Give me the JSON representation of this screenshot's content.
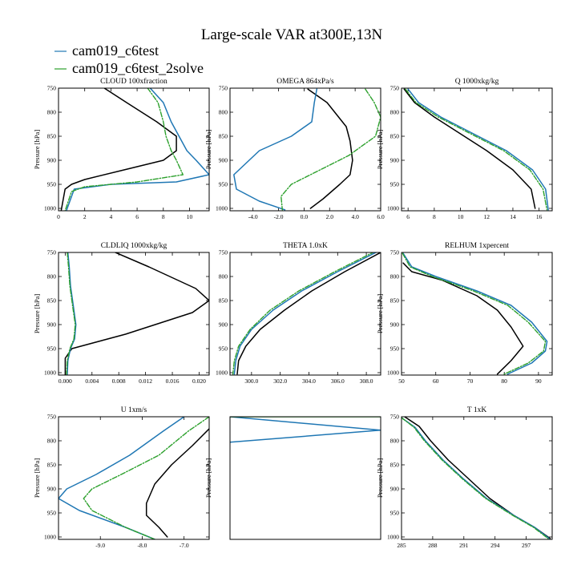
{
  "figure": {
    "title": "Large-scale VAR at300E,13N",
    "legend": [
      {
        "name": "cam019_c6test",
        "color": "#1f77b4"
      },
      {
        "name": "cam019_c6test_2solve",
        "color": "#2ca02c"
      }
    ],
    "obs_color": "#000000"
  },
  "chart_data": [
    {
      "type": "line",
      "title": "CLOUD  100xfraction",
      "ylabel": "Pressure [hPa]",
      "xlim": [
        0,
        11.5
      ],
      "ylim": [
        1005,
        750
      ],
      "xticks": [
        {
          "v": 0,
          "l": "0"
        },
        {
          "v": 2,
          "l": "2"
        },
        {
          "v": 4,
          "l": "4"
        },
        {
          "v": 6,
          "l": "6"
        },
        {
          "v": 8,
          "l": "8"
        },
        {
          "v": 10,
          "l": "10"
        }
      ],
      "yticks": [
        {
          "v": 750,
          "l": "750"
        },
        {
          "v": 800,
          "l": "800"
        },
        {
          "v": 850,
          "l": "850"
        },
        {
          "v": 900,
          "l": "900"
        },
        {
          "v": 950,
          "l": "950"
        },
        {
          "v": 1000,
          "l": "1000"
        }
      ],
      "series": [
        {
          "name": "obs",
          "style": "solid",
          "x": [
            3.5,
            5.2,
            7.5,
            9.0,
            9.0,
            8.0,
            5.0,
            2.0,
            1.0,
            0.5,
            0.2
          ],
          "y": [
            750,
            780,
            820,
            850,
            880,
            900,
            920,
            940,
            950,
            960,
            1005
          ]
        },
        {
          "name": "cam019_c6test",
          "style": "solid",
          "x": [
            7.0,
            8.0,
            8.6,
            9.2,
            9.8,
            10.5,
            11.5,
            9.0,
            4.0,
            1.2,
            0.6
          ],
          "y": [
            750,
            780,
            820,
            850,
            880,
            900,
            930,
            945,
            950,
            960,
            1005
          ]
        },
        {
          "name": "cam019_c6test_2solve",
          "style": "dashdot",
          "x": [
            6.8,
            7.6,
            8.0,
            8.2,
            8.6,
            9.0,
            9.5,
            6.0,
            2.0,
            1.0,
            0.5
          ],
          "y": [
            750,
            780,
            820,
            850,
            880,
            900,
            930,
            945,
            955,
            965,
            1005
          ]
        }
      ]
    },
    {
      "type": "line",
      "title": "OMEGA  864xPa/s",
      "ylabel": "Pressure [hPa]",
      "xlim": [
        -5.8,
        6.0
      ],
      "ylim": [
        1005,
        750
      ],
      "xticks": [
        {
          "v": -4,
          "l": "-4.0"
        },
        {
          "v": -2,
          "l": "-2.0"
        },
        {
          "v": 0,
          "l": "0.0"
        },
        {
          "v": 2,
          "l": "2.0"
        },
        {
          "v": 4,
          "l": "4.0"
        },
        {
          "v": 6,
          "l": "6.0"
        }
      ],
      "yticks": [
        {
          "v": 750,
          "l": "750"
        },
        {
          "v": 800,
          "l": "800"
        },
        {
          "v": 850,
          "l": "850"
        },
        {
          "v": 900,
          "l": "900"
        },
        {
          "v": 950,
          "l": "950"
        },
        {
          "v": 1000,
          "l": "1000"
        }
      ],
      "series": [
        {
          "name": "obs",
          "style": "solid",
          "x": [
            0.3,
            1.8,
            3.3,
            3.6,
            3.8,
            3.6,
            2.8,
            1.5,
            0.5
          ],
          "y": [
            752,
            780,
            830,
            860,
            900,
            930,
            950,
            980,
            1000
          ]
        },
        {
          "name": "cam019_c6test",
          "style": "solid",
          "x": [
            1.0,
            0.8,
            0.6,
            -1.0,
            -3.5,
            -5.5,
            -5.3,
            -3.5,
            -1.5
          ],
          "y": [
            752,
            780,
            820,
            850,
            880,
            930,
            960,
            985,
            1003
          ]
        },
        {
          "name": "cam019_c6test_2solve",
          "style": "dashdot",
          "x": [
            4.8,
            5.5,
            6.0,
            5.6,
            3.5,
            0.5,
            -1.0,
            -1.8,
            -1.7
          ],
          "y": [
            752,
            780,
            810,
            850,
            890,
            930,
            950,
            975,
            1003
          ]
        }
      ]
    },
    {
      "type": "line",
      "title": "Q  1000xkg/kg",
      "ylabel": "Pressure [hPa]",
      "xlim": [
        5.5,
        17
      ],
      "ylim": [
        1005,
        750
      ],
      "xticks": [
        {
          "v": 6,
          "l": "6"
        },
        {
          "v": 8,
          "l": "8"
        },
        {
          "v": 10,
          "l": "10"
        },
        {
          "v": 12,
          "l": "12"
        },
        {
          "v": 14,
          "l": "14"
        },
        {
          "v": 16,
          "l": "16"
        }
      ],
      "yticks": [
        {
          "v": 750,
          "l": "750"
        },
        {
          "v": 800,
          "l": "800"
        },
        {
          "v": 850,
          "l": "850"
        },
        {
          "v": 900,
          "l": "900"
        },
        {
          "v": 950,
          "l": "950"
        },
        {
          "v": 1000,
          "l": "1000"
        }
      ],
      "series": [
        {
          "name": "obs",
          "style": "solid",
          "x": [
            5.7,
            6.5,
            8.0,
            10.0,
            12.0,
            14.0,
            15.4,
            15.7
          ],
          "y": [
            752,
            780,
            810,
            845,
            880,
            920,
            960,
            1000
          ]
        },
        {
          "name": "cam019_c6test",
          "style": "solid",
          "x": [
            6.0,
            6.8,
            8.5,
            11.0,
            13.5,
            15.5,
            16.5,
            16.7
          ],
          "y": [
            752,
            780,
            810,
            845,
            880,
            920,
            960,
            1003
          ]
        },
        {
          "name": "cam019_c6test_2solve",
          "style": "dashdot",
          "x": [
            5.8,
            6.6,
            8.3,
            10.8,
            13.3,
            15.3,
            16.3,
            16.6
          ],
          "y": [
            752,
            780,
            810,
            845,
            880,
            920,
            960,
            1003
          ]
        }
      ]
    },
    {
      "type": "line",
      "title": "CLDLIQ  1000xkg/kg",
      "ylabel": "Pressure [hPa]",
      "xlim": [
        -0.001,
        0.0215
      ],
      "ylim": [
        1005,
        750
      ],
      "xticks": [
        {
          "v": 0,
          "l": "0.000"
        },
        {
          "v": 0.004,
          "l": "0.004"
        },
        {
          "v": 0.008,
          "l": "0.008"
        },
        {
          "v": 0.012,
          "l": "0.012"
        },
        {
          "v": 0.016,
          "l": "0.016"
        },
        {
          "v": 0.02,
          "l": "0.020"
        }
      ],
      "yticks": [
        {
          "v": 750,
          "l": "750"
        },
        {
          "v": 800,
          "l": "800"
        },
        {
          "v": 850,
          "l": "850"
        },
        {
          "v": 900,
          "l": "900"
        },
        {
          "v": 950,
          "l": "950"
        },
        {
          "v": 1000,
          "l": "1000"
        }
      ],
      "series": [
        {
          "name": "obs",
          "style": "solid",
          "x": [
            0.0075,
            0.0125,
            0.0195,
            0.0215,
            0.019,
            0.009,
            0.001,
            0.0,
            0.0
          ],
          "y": [
            750,
            780,
            825,
            850,
            875,
            920,
            950,
            970,
            1005
          ]
        },
        {
          "name": "cam019_c6test",
          "style": "solid",
          "x": [
            0.0004,
            0.0006,
            0.0008,
            0.0012,
            0.0016,
            0.0014,
            0.0008,
            0.0004,
            0.0003
          ],
          "y": [
            750,
            780,
            820,
            860,
            900,
            930,
            950,
            975,
            1005
          ]
        },
        {
          "name": "cam019_c6test_2solve",
          "style": "dashdot",
          "x": [
            0.0003,
            0.0005,
            0.0007,
            0.0011,
            0.0015,
            0.0013,
            0.0007,
            0.0003,
            0.0002
          ],
          "y": [
            750,
            780,
            820,
            860,
            900,
            930,
            950,
            975,
            1005
          ]
        }
      ]
    },
    {
      "type": "line",
      "title": "THETA  1.0xK",
      "ylabel": "",
      "xlim": [
        298.5,
        309
      ],
      "ylim": [
        1005,
        750
      ],
      "xticks": [
        {
          "v": 300,
          "l": "300.0"
        },
        {
          "v": 302,
          "l": "302.0"
        },
        {
          "v": 304,
          "l": "304.0"
        },
        {
          "v": 306,
          "l": "306.0"
        },
        {
          "v": 308,
          "l": "308.0"
        }
      ],
      "yticks": [
        {
          "v": 750,
          "l": "750"
        },
        {
          "v": 800,
          "l": "800"
        },
        {
          "v": 850,
          "l": "850"
        },
        {
          "v": 900,
          "l": "900"
        },
        {
          "v": 950,
          "l": "950"
        },
        {
          "v": 1000,
          "l": "1000"
        }
      ],
      "series": [
        {
          "name": "obs",
          "style": "solid",
          "x": [
            309,
            306.5,
            304.2,
            302.3,
            300.6,
            299.6,
            299.1,
            299.0
          ],
          "y": [
            750,
            790,
            830,
            870,
            910,
            945,
            975,
            1003
          ]
        },
        {
          "name": "cam019_c6test",
          "style": "solid",
          "x": [
            308.8,
            306.0,
            303.5,
            301.5,
            300.0,
            299.2,
            298.9,
            298.8
          ],
          "y": [
            748,
            790,
            830,
            870,
            910,
            945,
            975,
            1003
          ]
        },
        {
          "name": "cam019_c6test_2solve",
          "style": "dashdot",
          "x": [
            308.6,
            305.8,
            303.3,
            301.3,
            299.9,
            299.1,
            298.8,
            298.7
          ],
          "y": [
            748,
            790,
            830,
            870,
            910,
            945,
            975,
            1003
          ]
        }
      ]
    },
    {
      "type": "line",
      "title": "RELHUM  1xpercent",
      "ylabel": "Pressure [hPa]",
      "xlim": [
        50,
        94
      ],
      "ylim": [
        1005,
        750
      ],
      "xticks": [
        {
          "v": 50,
          "l": "50"
        },
        {
          "v": 60,
          "l": "60"
        },
        {
          "v": 70,
          "l": "70"
        },
        {
          "v": 80,
          "l": "80"
        },
        {
          "v": 90,
          "l": "90"
        }
      ],
      "yticks": [
        {
          "v": 750,
          "l": "750"
        },
        {
          "v": 800,
          "l": "800"
        },
        {
          "v": 850,
          "l": "850"
        },
        {
          "v": 900,
          "l": "900"
        },
        {
          "v": 950,
          "l": "950"
        },
        {
          "v": 1000,
          "l": "1000"
        }
      ],
      "series": [
        {
          "name": "obs",
          "style": "solid",
          "x": [
            50.5,
            53,
            62,
            72,
            78,
            82,
            85.5,
            82,
            78
          ],
          "y": [
            772,
            790,
            808,
            840,
            870,
            905,
            945,
            975,
            1003
          ]
        },
        {
          "name": "cam019_c6test",
          "style": "solid",
          "x": [
            50.5,
            53,
            60,
            72,
            82,
            88,
            92.5,
            92,
            88,
            81
          ],
          "y": [
            752,
            780,
            800,
            830,
            860,
            895,
            935,
            955,
            980,
            1003
          ]
        },
        {
          "name": "cam019_c6test_2solve",
          "style": "dashdot",
          "x": [
            50.3,
            52.5,
            59,
            71,
            81,
            87,
            92,
            91.5,
            87,
            80
          ],
          "y": [
            752,
            780,
            800,
            830,
            860,
            895,
            935,
            955,
            980,
            1003
          ]
        }
      ]
    },
    {
      "type": "line",
      "title": "U  1xm/s",
      "ylabel": "Pressure [hPa]",
      "xlim": [
        -10.0,
        -6.4
      ],
      "ylim": [
        1005,
        750
      ],
      "xticks": [
        {
          "v": -9,
          "l": "-9.0"
        },
        {
          "v": -8,
          "l": "-8.0"
        },
        {
          "v": -7,
          "l": "-7.0"
        }
      ],
      "yticks": [
        {
          "v": 750,
          "l": "750"
        },
        {
          "v": 800,
          "l": "800"
        },
        {
          "v": 850,
          "l": "850"
        },
        {
          "v": 900,
          "l": "900"
        },
        {
          "v": 950,
          "l": "950"
        },
        {
          "v": 1000,
          "l": "1000"
        }
      ],
      "series": [
        {
          "name": "obs",
          "style": "solid",
          "x": [
            -6.4,
            -6.8,
            -7.3,
            -7.7,
            -7.9,
            -7.9,
            -7.6,
            -7.4
          ],
          "y": [
            775,
            810,
            850,
            890,
            930,
            955,
            980,
            1000
          ]
        },
        {
          "name": "cam019_c6test",
          "style": "solid",
          "x": [
            -7.0,
            -7.5,
            -8.3,
            -9.1,
            -9.8,
            -10.0,
            -9.5,
            -8.4,
            -7.7
          ],
          "y": [
            750,
            780,
            830,
            870,
            900,
            920,
            945,
            980,
            1005
          ]
        },
        {
          "name": "cam019_c6test_2solve",
          "style": "dashdot",
          "x": [
            -6.4,
            -6.9,
            -7.6,
            -8.5,
            -9.2,
            -9.4,
            -9.2,
            -8.4,
            -7.7
          ],
          "y": [
            750,
            780,
            830,
            870,
            900,
            920,
            945,
            980,
            1005
          ]
        }
      ]
    },
    {
      "type": "line",
      "title": "",
      "ylabel": "Pressure [hPa]",
      "xlim": [
        0,
        1
      ],
      "ylim": [
        1005,
        750
      ],
      "xticks": [],
      "yticks": [],
      "series": [
        {
          "name": "cam019_c6test",
          "style": "solid",
          "x": [
            0.0,
            1.0,
            0.0
          ],
          "y": [
            750,
            778,
            803
          ]
        },
        {
          "name": "cam019_c6test_2solve",
          "style": "solid",
          "x": [
            0.0,
            1.0
          ],
          "y": [
            750,
            750
          ]
        }
      ]
    },
    {
      "type": "line",
      "title": "T  1xK",
      "ylabel": "Pressure [hPa]",
      "xlim": [
        285,
        299.5
      ],
      "ylim": [
        1005,
        750
      ],
      "xticks": [
        {
          "v": 285,
          "l": "285"
        },
        {
          "v": 288,
          "l": "288"
        },
        {
          "v": 291,
          "l": "291"
        },
        {
          "v": 294,
          "l": "294"
        },
        {
          "v": 297,
          "l": "297"
        }
      ],
      "yticks": [
        {
          "v": 750,
          "l": "750"
        },
        {
          "v": 800,
          "l": "800"
        },
        {
          "v": 850,
          "l": "850"
        },
        {
          "v": 900,
          "l": "900"
        },
        {
          "v": 950,
          "l": "950"
        },
        {
          "v": 1000,
          "l": "1000"
        }
      ],
      "series": [
        {
          "name": "obs",
          "style": "solid",
          "x": [
            285.3,
            286.7,
            287.8,
            289.5,
            291.5,
            293.5,
            295.8,
            297.8,
            299.3
          ],
          "y": [
            750,
            770,
            800,
            840,
            880,
            920,
            955,
            980,
            1003
          ]
        },
        {
          "name": "cam019_c6test",
          "style": "solid",
          "x": [
            285.0,
            286.3,
            287.3,
            289.0,
            291.0,
            293.2,
            295.8,
            297.8,
            299.2
          ],
          "y": [
            752,
            772,
            800,
            840,
            880,
            920,
            955,
            980,
            1003
          ]
        },
        {
          "name": "cam019_c6test_2solve",
          "style": "dashdot",
          "x": [
            285.0,
            286.2,
            287.2,
            288.9,
            290.9,
            293.1,
            295.7,
            297.7,
            299.1
          ],
          "y": [
            752,
            772,
            800,
            840,
            880,
            920,
            955,
            980,
            1003
          ]
        }
      ]
    }
  ]
}
